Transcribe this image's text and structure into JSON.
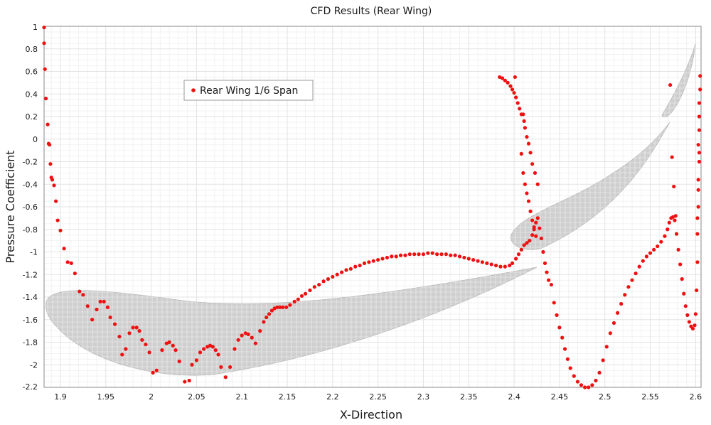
{
  "chart_data": {
    "type": "scatter",
    "title": "CFD Results (Rear Wing)",
    "xlabel": "X-Direction",
    "ylabel": "Pressure Coefficient",
    "xlim": [
      1.882,
      2.606
    ],
    "ylim": [
      -2.2,
      1.0
    ],
    "xticks": [
      "1.9",
      "1.95",
      "2",
      "2.05",
      "2.1",
      "2.15",
      "2.2",
      "2.25",
      "2.3",
      "2.35",
      "2.4",
      "2.45",
      "2.5",
      "2.55",
      "2.6"
    ],
    "yticks": [
      "1",
      "0.8",
      "0.6",
      "0.4",
      "0.2",
      "0",
      "-0.2",
      "-0.4",
      "-0.6",
      "-0.8",
      "-1",
      "-1.2",
      "-1.4",
      "-1.6",
      "-1.8",
      "-2",
      "-2.2"
    ],
    "grid": true,
    "legend_position": "top-left",
    "colors": {
      "series": "#ee1111",
      "airfoil_fill": "#cfcfcf",
      "grid_major": "#e3e3e3",
      "grid_minor": "#f2f2f2"
    },
    "series": [
      {
        "name": "Rear Wing 1/6 Span",
        "points": [
          [
            1.882,
            0.99
          ],
          [
            1.882,
            0.85
          ],
          [
            1.883,
            0.62
          ],
          [
            1.884,
            0.36
          ],
          [
            1.886,
            0.13
          ],
          [
            1.887,
            -0.04
          ],
          [
            1.888,
            -0.05
          ],
          [
            1.889,
            -0.22
          ],
          [
            1.89,
            -0.34
          ],
          [
            1.891,
            -0.36
          ],
          [
            1.893,
            -0.41
          ],
          [
            1.895,
            -0.55
          ],
          [
            1.897,
            -0.72
          ],
          [
            1.9,
            -0.81
          ],
          [
            1.904,
            -0.97
          ],
          [
            1.908,
            -1.09
          ],
          [
            1.912,
            -1.1
          ],
          [
            1.916,
            -1.19
          ],
          [
            1.921,
            -1.35
          ],
          [
            1.925,
            -1.38
          ],
          [
            1.93,
            -1.48
          ],
          [
            1.935,
            -1.6
          ],
          [
            1.94,
            -1.51
          ],
          [
            1.944,
            -1.44
          ],
          [
            1.948,
            -1.44
          ],
          [
            1.952,
            -1.49
          ],
          [
            1.955,
            -1.58
          ],
          [
            1.96,
            -1.64
          ],
          [
            1.965,
            -1.75
          ],
          [
            1.968,
            -1.91
          ],
          [
            1.972,
            -1.86
          ],
          [
            1.976,
            -1.72
          ],
          [
            1.98,
            -1.67
          ],
          [
            1.984,
            -1.67
          ],
          [
            1.987,
            -1.7
          ],
          [
            1.99,
            -1.78
          ],
          [
            1.994,
            -1.82
          ],
          [
            1.998,
            -1.89
          ],
          [
            2.002,
            -2.07
          ],
          [
            2.006,
            -2.05
          ],
          [
            2.012,
            -1.87
          ],
          [
            2.017,
            -1.81
          ],
          [
            2.02,
            -1.8
          ],
          [
            2.024,
            -1.83
          ],
          [
            2.027,
            -1.87
          ],
          [
            2.031,
            -1.97
          ],
          [
            2.037,
            -2.15
          ],
          [
            2.042,
            -2.14
          ],
          [
            2.045,
            -2.0
          ],
          [
            2.05,
            -1.96
          ],
          [
            2.054,
            -1.89
          ],
          [
            2.058,
            -1.86
          ],
          [
            2.062,
            -1.84
          ],
          [
            2.065,
            -1.83
          ],
          [
            2.068,
            -1.84
          ],
          [
            2.071,
            -1.87
          ],
          [
            2.074,
            -1.91
          ],
          [
            2.077,
            -2.02
          ],
          [
            2.082,
            -2.11
          ],
          [
            2.087,
            -2.02
          ],
          [
            2.092,
            -1.86
          ],
          [
            2.096,
            -1.78
          ],
          [
            2.1,
            -1.74
          ],
          [
            2.104,
            -1.72
          ],
          [
            2.107,
            -1.73
          ],
          [
            2.111,
            -1.76
          ],
          [
            2.115,
            -1.81
          ],
          [
            2.12,
            -1.7
          ],
          [
            2.124,
            -1.62
          ],
          [
            2.127,
            -1.58
          ],
          [
            2.13,
            -1.55
          ],
          [
            2.133,
            -1.52
          ],
          [
            2.136,
            -1.5
          ],
          [
            2.139,
            -1.49
          ],
          [
            2.142,
            -1.49
          ],
          [
            2.145,
            -1.49
          ],
          [
            2.149,
            -1.49
          ],
          [
            2.153,
            -1.47
          ],
          [
            2.158,
            -1.44
          ],
          [
            2.162,
            -1.42
          ],
          [
            2.166,
            -1.39
          ],
          [
            2.17,
            -1.37
          ],
          [
            2.175,
            -1.34
          ],
          [
            2.18,
            -1.31
          ],
          [
            2.185,
            -1.29
          ],
          [
            2.19,
            -1.26
          ],
          [
            2.195,
            -1.24
          ],
          [
            2.2,
            -1.22
          ],
          [
            2.205,
            -1.2
          ],
          [
            2.21,
            -1.18
          ],
          [
            2.215,
            -1.16
          ],
          [
            2.22,
            -1.15
          ],
          [
            2.225,
            -1.13
          ],
          [
            2.23,
            -1.12
          ],
          [
            2.235,
            -1.1
          ],
          [
            2.24,
            -1.09
          ],
          [
            2.245,
            -1.08
          ],
          [
            2.25,
            -1.07
          ],
          [
            2.255,
            -1.06
          ],
          [
            2.26,
            -1.05
          ],
          [
            2.265,
            -1.04
          ],
          [
            2.27,
            -1.04
          ],
          [
            2.275,
            -1.03
          ],
          [
            2.28,
            -1.03
          ],
          [
            2.285,
            -1.02
          ],
          [
            2.29,
            -1.02
          ],
          [
            2.295,
            -1.02
          ],
          [
            2.3,
            -1.02
          ],
          [
            2.305,
            -1.01
          ],
          [
            2.31,
            -1.01
          ],
          [
            2.315,
            -1.02
          ],
          [
            2.32,
            -1.02
          ],
          [
            2.325,
            -1.02
          ],
          [
            2.33,
            -1.03
          ],
          [
            2.335,
            -1.03
          ],
          [
            2.34,
            -1.04
          ],
          [
            2.345,
            -1.05
          ],
          [
            2.35,
            -1.06
          ],
          [
            2.355,
            -1.07
          ],
          [
            2.36,
            -1.08
          ],
          [
            2.365,
            -1.09
          ],
          [
            2.37,
            -1.1
          ],
          [
            2.375,
            -1.11
          ],
          [
            2.38,
            -1.12
          ],
          [
            2.385,
            -1.13
          ],
          [
            2.39,
            -1.13
          ],
          [
            2.395,
            -1.12
          ],
          [
            2.398,
            -1.1
          ],
          [
            2.402,
            -1.06
          ],
          [
            2.405,
            -1.02
          ],
          [
            2.408,
            -0.98
          ],
          [
            2.411,
            -0.94
          ],
          [
            2.414,
            -0.92
          ],
          [
            2.417,
            -0.9
          ],
          [
            2.42,
            -0.85
          ],
          [
            2.422,
            -0.78
          ],
          [
            2.424,
            -0.74
          ],
          [
            2.426,
            -0.7
          ],
          [
            2.428,
            -0.79
          ],
          [
            2.43,
            -0.88
          ],
          [
            2.432,
            -1.0
          ],
          [
            2.434,
            -1.1
          ],
          [
            2.436,
            -1.18
          ],
          [
            2.438,
            -1.25
          ],
          [
            2.441,
            -1.29
          ],
          [
            2.444,
            -1.45
          ],
          [
            2.447,
            -1.56
          ],
          [
            2.45,
            -1.67
          ],
          [
            2.453,
            -1.76
          ],
          [
            2.456,
            -1.86
          ],
          [
            2.459,
            -1.95
          ],
          [
            2.462,
            -2.03
          ],
          [
            2.466,
            -2.1
          ],
          [
            2.47,
            -2.15
          ],
          [
            2.474,
            -2.18
          ],
          [
            2.478,
            -2.2
          ],
          [
            2.482,
            -2.2
          ],
          [
            2.486,
            -2.18
          ],
          [
            2.49,
            -2.14
          ],
          [
            2.494,
            -2.07
          ],
          [
            2.498,
            -1.96
          ],
          [
            2.502,
            -1.84
          ],
          [
            2.506,
            -1.72
          ],
          [
            2.51,
            -1.63
          ],
          [
            2.514,
            -1.54
          ],
          [
            2.518,
            -1.46
          ],
          [
            2.522,
            -1.38
          ],
          [
            2.526,
            -1.31
          ],
          [
            2.53,
            -1.25
          ],
          [
            2.534,
            -1.19
          ],
          [
            2.538,
            -1.13
          ],
          [
            2.542,
            -1.08
          ],
          [
            2.546,
            -1.04
          ],
          [
            2.55,
            -1.01
          ],
          [
            2.554,
            -0.98
          ],
          [
            2.558,
            -0.95
          ],
          [
            2.562,
            -0.91
          ],
          [
            2.566,
            -0.86
          ],
          [
            2.569,
            -0.8
          ],
          [
            2.571,
            -0.74
          ],
          [
            2.573,
            -0.7
          ],
          [
            2.575,
            -0.69
          ],
          [
            2.577,
            -0.72
          ],
          [
            2.579,
            -0.84
          ],
          [
            2.581,
            -0.98
          ],
          [
            2.583,
            -1.11
          ],
          [
            2.585,
            -1.24
          ],
          [
            2.587,
            -1.37
          ],
          [
            2.589,
            -1.48
          ],
          [
            2.591,
            -1.56
          ],
          [
            2.593,
            -1.62
          ],
          [
            2.595,
            -1.66
          ],
          [
            2.597,
            -1.68
          ],
          [
            2.599,
            -1.65
          ],
          [
            2.6,
            -1.55
          ],
          [
            2.601,
            -1.34
          ],
          [
            2.602,
            -1.09
          ],
          [
            2.602,
            -0.84
          ],
          [
            2.603,
            -0.6
          ],
          [
            2.603,
            -0.36
          ],
          [
            2.604,
            -0.12
          ],
          [
            2.604,
            0.08
          ],
          [
            2.604,
            0.32
          ],
          [
            2.605,
            0.44
          ],
          [
            2.605,
            0.56
          ],
          [
            2.604,
            0.2
          ],
          [
            2.603,
            -0.05
          ],
          [
            2.604,
            -0.2
          ],
          [
            2.603,
            -0.45
          ],
          [
            2.602,
            -0.7
          ],
          [
            2.572,
            0.48
          ],
          [
            2.574,
            -0.16
          ],
          [
            2.576,
            -0.42
          ],
          [
            2.578,
            -0.68
          ],
          [
            2.384,
            0.55
          ],
          [
            2.387,
            0.54
          ],
          [
            2.39,
            0.52
          ],
          [
            2.393,
            0.5
          ],
          [
            2.396,
            0.47
          ],
          [
            2.398,
            0.44
          ],
          [
            2.4,
            0.41
          ],
          [
            2.401,
            0.55
          ],
          [
            2.402,
            0.37
          ],
          [
            2.404,
            0.32
          ],
          [
            2.406,
            0.27
          ],
          [
            2.408,
            0.22
          ],
          [
            2.41,
            0.22
          ],
          [
            2.411,
            0.16
          ],
          [
            2.412,
            0.1
          ],
          [
            2.414,
            0.02
          ],
          [
            2.416,
            -0.04
          ],
          [
            2.418,
            -0.12
          ],
          [
            2.42,
            -0.22
          ],
          [
            2.423,
            -0.3
          ],
          [
            2.426,
            -0.4
          ],
          [
            2.408,
            -0.13
          ],
          [
            2.41,
            -0.3
          ],
          [
            2.412,
            -0.4
          ],
          [
            2.414,
            -0.48
          ],
          [
            2.416,
            -0.55
          ],
          [
            2.418,
            -0.64
          ],
          [
            2.42,
            -0.72
          ],
          [
            2.422,
            -0.8
          ],
          [
            2.424,
            -0.86
          ]
        ]
      }
    ]
  }
}
